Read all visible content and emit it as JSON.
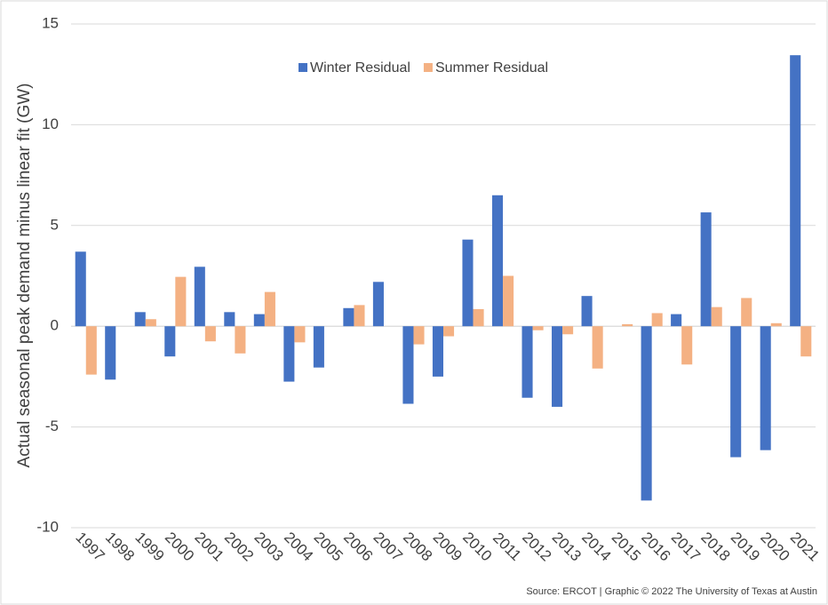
{
  "chart_data": {
    "type": "bar",
    "y_label": "Actual seasonal peak demand minus linear fit (GW)",
    "source": "Source: ERCOT | Graphic © 2022 The University of Texas at Austin",
    "categories": [
      "1997",
      "1998",
      "1999",
      "2000",
      "2001",
      "2002",
      "2003",
      "2004",
      "2005",
      "2006",
      "2007",
      "2008",
      "2009",
      "2010",
      "2011",
      "2012",
      "2013",
      "2014",
      "2015",
      "2016",
      "2017",
      "2018",
      "2019",
      "2020",
      "2021"
    ],
    "series": [
      {
        "name": "Winter Residual",
        "color": "#4472c4",
        "values": [
          3.7,
          -2.65,
          0.7,
          -1.5,
          2.95,
          0.7,
          0.6,
          -2.75,
          -2.05,
          0.9,
          2.2,
          -3.85,
          -2.5,
          4.3,
          6.5,
          -3.55,
          -4.0,
          1.5,
          0,
          -8.65,
          0.6,
          5.65,
          -6.5,
          -6.15,
          13.45
        ]
      },
      {
        "name": "Summer Residual",
        "color": "#f4b183",
        "values": [
          -2.4,
          0,
          0.35,
          2.45,
          -0.75,
          -1.35,
          1.7,
          -0.8,
          0,
          1.05,
          0,
          -0.9,
          -0.5,
          0.85,
          2.5,
          -0.2,
          -0.4,
          -2.1,
          0.1,
          0.65,
          -1.9,
          0.95,
          1.4,
          0.15,
          -1.5
        ]
      }
    ],
    "ylim": [
      -10,
      15
    ],
    "yticks": [
      -10,
      -5,
      0,
      5,
      10,
      15
    ],
    "grid": true,
    "legend": "top"
  }
}
